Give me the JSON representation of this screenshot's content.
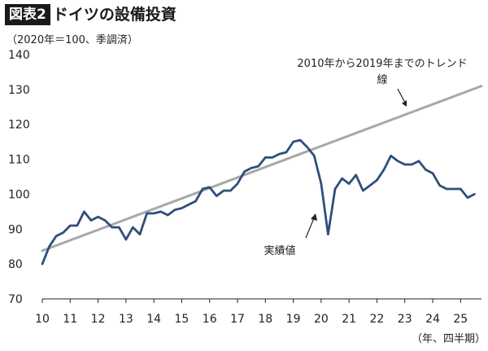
{
  "header": {
    "badge": "図表2",
    "title": "ドイツの設備投資"
  },
  "chart_data": {
    "type": "line",
    "title": "ドイツの設備投資",
    "subtitle": "（2020年＝100、季調済）",
    "xlabel": "（年、四半期）",
    "ylabel": "",
    "ylim": [
      70,
      140
    ],
    "xlim": [
      10,
      25.75
    ],
    "yticks": [
      "70",
      "80",
      "90",
      "100",
      "110",
      "120",
      "130",
      "140"
    ],
    "xticks": [
      "10",
      "11",
      "12",
      "13",
      "14",
      "15",
      "16",
      "17",
      "18",
      "19",
      "20",
      "21",
      "22",
      "23",
      "24",
      "25"
    ],
    "grid": false,
    "colors": {
      "actual": "#2f4f7a",
      "trend": "#a8a8a8"
    },
    "series": [
      {
        "name": "実績値",
        "color": "#2f4f7a",
        "x": [
          10,
          10.25,
          10.5,
          10.75,
          11,
          11.25,
          11.5,
          11.75,
          12,
          12.25,
          12.5,
          12.75,
          13,
          13.25,
          13.5,
          13.75,
          14,
          14.25,
          14.5,
          14.75,
          15,
          15.25,
          15.5,
          15.75,
          16,
          16.25,
          16.5,
          16.75,
          17,
          17.25,
          17.5,
          17.75,
          18,
          18.25,
          18.5,
          18.75,
          19,
          19.25,
          19.5,
          19.75,
          20,
          20.25,
          20.5,
          20.75,
          21,
          21.25,
          21.5,
          21.75,
          22,
          22.25,
          22.5,
          22.75,
          23,
          23.25,
          23.5,
          23.75,
          24,
          24.25,
          24.5,
          24.75,
          25,
          25.25,
          25.5
        ],
        "y": [
          80,
          85,
          88,
          89,
          91,
          91,
          95,
          92.5,
          93.5,
          92.5,
          90.5,
          90.5,
          87,
          90.5,
          88.5,
          94.5,
          94.5,
          95,
          94,
          95.5,
          96,
          97,
          98,
          101.5,
          102,
          99.5,
          101,
          101,
          103,
          106.5,
          107.5,
          108,
          110.5,
          110.5,
          111.5,
          112,
          115,
          115.5,
          113.5,
          111,
          103,
          88.5,
          101.5,
          104.5,
          103,
          105.5,
          101,
          102.5,
          104,
          107,
          111,
          109.5,
          108.5,
          108.5,
          109.5,
          107,
          106,
          102.5,
          101.5,
          101.5,
          101.5,
          99,
          100
        ]
      },
      {
        "name": "2010年から2019年までのトレンド線",
        "color": "#a8a8a8",
        "x": [
          10,
          25.75
        ],
        "y": [
          83.8,
          131
        ]
      }
    ],
    "annotations": {
      "trend_label_line1": "2010年から2019年までのトレンド",
      "trend_label_line2": "線",
      "actual_label": "実績値"
    }
  }
}
